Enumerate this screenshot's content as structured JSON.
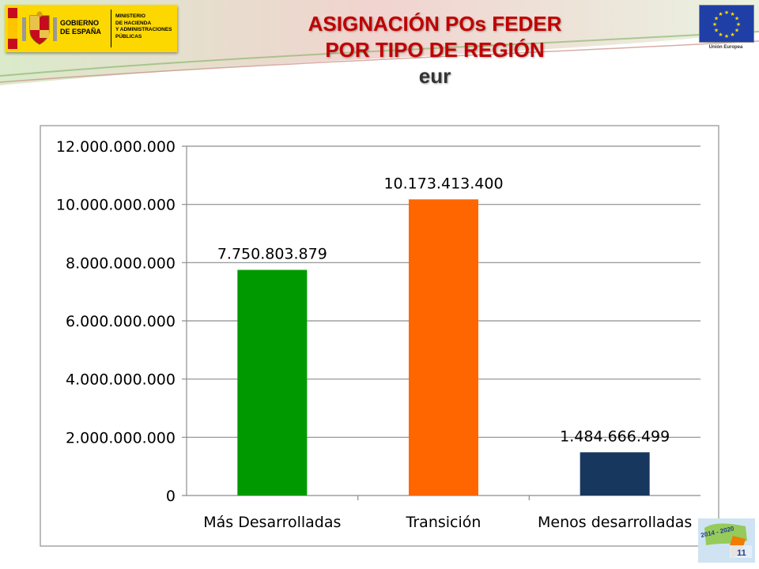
{
  "header": {
    "gov_name": "GOBIERNO\nDE ESPAÑA",
    "ministry": "MINISTERIO\nDE HACIENDA\nY ADMINISTRACIONES\nPÚBLICAS",
    "eu_label": "Unión Europea",
    "title_line1": "ASIGNACIÓN POs FEDER",
    "title_line2": "POR TIPO DE REGIÓN",
    "title_unit": "eur"
  },
  "colors": {
    "title": "#c00000",
    "gov_yellow": "#fdd800",
    "eu_blue": "#1f3fa6"
  },
  "chart_data": {
    "type": "bar",
    "categories": [
      "Más Desarrolladas",
      "Transición",
      "Menos desarrolladas"
    ],
    "values": [
      7750803879,
      10173413400,
      1484666499
    ],
    "value_labels": [
      "7.750.803.879",
      "10.173.413.400",
      "1.484.666.499"
    ],
    "colors": [
      "#009900",
      "#ff6600",
      "#17375e"
    ],
    "ylim": [
      0,
      12000000000
    ],
    "yticks": [
      0,
      2000000000,
      4000000000,
      6000000000,
      8000000000,
      10000000000,
      12000000000
    ],
    "ytick_labels": [
      "0",
      "2.000.000.000",
      "4.000.000.000",
      "6.000.000.000",
      "8.000.000.000",
      "10.000.000.000",
      "12.000.000.000"
    ],
    "grid": true,
    "legend": "none"
  },
  "footer": {
    "badge_text": "2014 - 2020",
    "page_number": "11"
  }
}
